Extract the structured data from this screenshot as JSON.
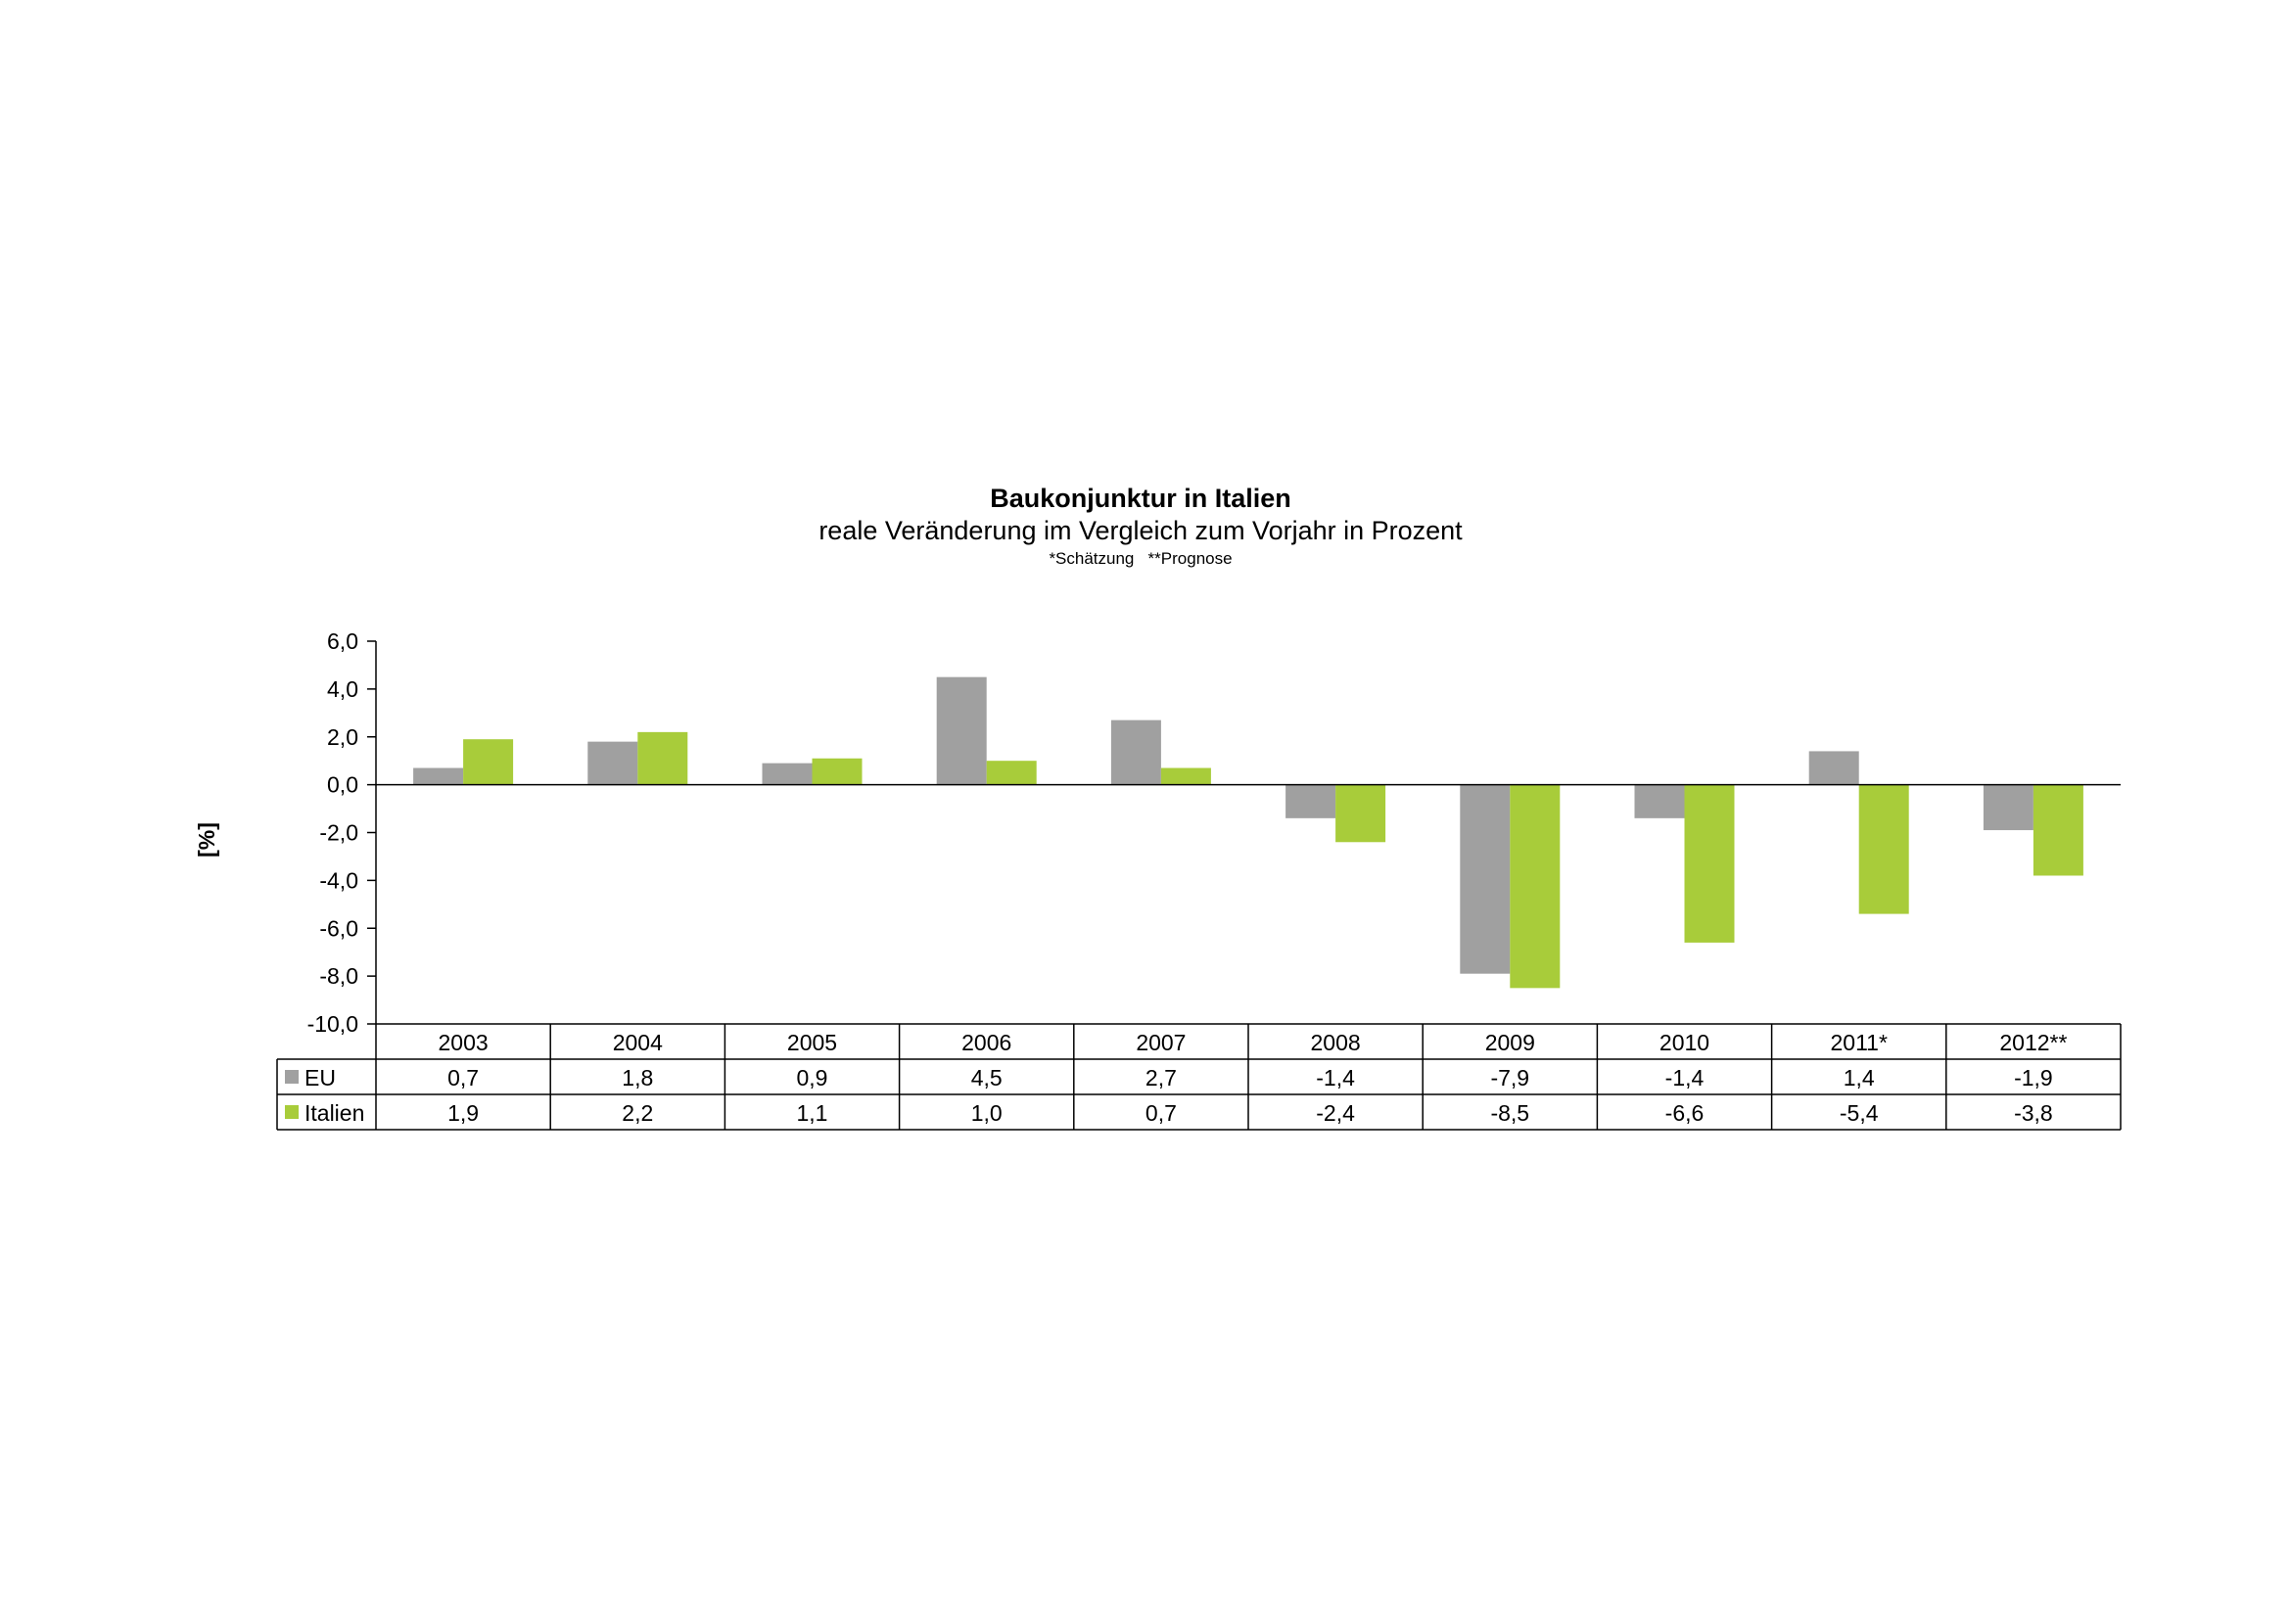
{
  "chart_data": {
    "type": "bar",
    "title": "Baukonjunktur in Italien",
    "subtitle": "reale Veränderung im Vergleich zum Vorjahr in Prozent",
    "note": "*Schätzung   **Prognose",
    "ylabel": "[%]",
    "xlabel": "",
    "ylim": [
      -10,
      6
    ],
    "yticks": [
      6,
      4,
      2,
      0,
      -2,
      -4,
      -6,
      -8,
      -10
    ],
    "ytick_labels": [
      "6,0",
      "4,0",
      "2,0",
      "0,0",
      "-2,0",
      "-4,0",
      "-6,0",
      "-8,0",
      "-10,0"
    ],
    "categories": [
      "2003",
      "2004",
      "2005",
      "2006",
      "2007",
      "2008",
      "2009",
      "2010",
      "2011*",
      "2012**"
    ],
    "series": [
      {
        "name": "EU",
        "color": "#a0a0a0",
        "values": [
          0.7,
          1.8,
          0.9,
          4.5,
          2.7,
          -1.4,
          -7.9,
          -1.4,
          1.4,
          -1.9
        ],
        "labels": [
          "0,7",
          "1,8",
          "0,9",
          "4,5",
          "2,7",
          "-1,4",
          "-7,9",
          "-1,4",
          "1,4",
          "-1,9"
        ]
      },
      {
        "name": "Italien",
        "color": "#a8cc3a",
        "values": [
          1.9,
          2.2,
          1.1,
          1.0,
          0.7,
          -2.4,
          -8.5,
          -6.6,
          -5.4,
          -3.8
        ],
        "labels": [
          "1,9",
          "2,2",
          "1,1",
          "1,0",
          "0,7",
          "-2,4",
          "-8,5",
          "-6,6",
          "-5,4",
          "-3,8"
        ]
      }
    ],
    "legend": "data-table-left",
    "grid": false
  }
}
